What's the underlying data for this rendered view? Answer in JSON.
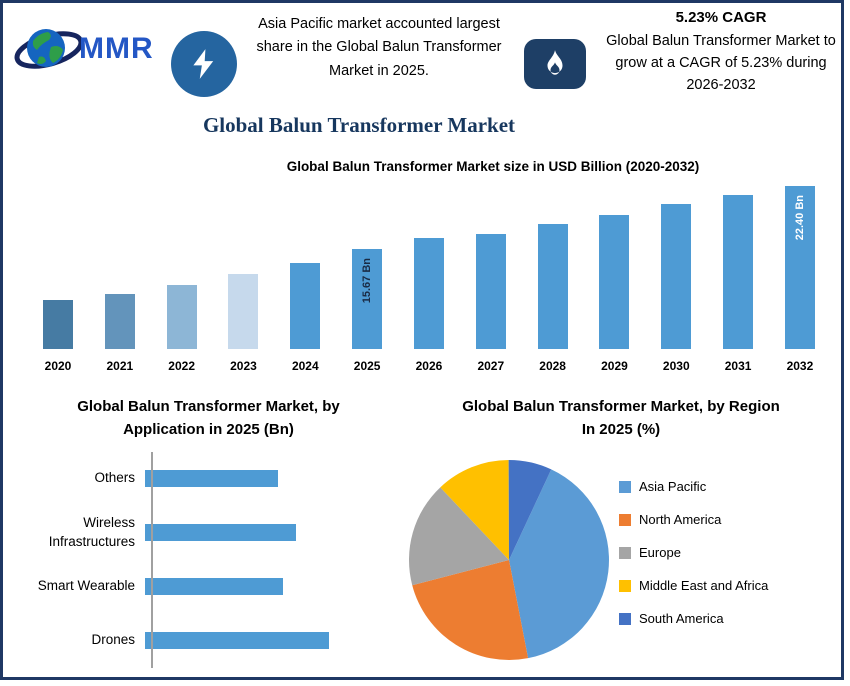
{
  "frame": {
    "border_color": "#1f3864",
    "background": "#ffffff"
  },
  "header": {
    "logo": {
      "text": "MMR",
      "icon": "globe-orbit-icon"
    },
    "highlight": "Asia Pacific market accounted largest share in the Global Balun Transformer Market in 2025.",
    "bolt_icon": "lightning-icon",
    "flame_icon": "flame-icon",
    "cagr_title": "5.23% CAGR",
    "cagr_text": "Global Balun Transformer Market to grow at a CAGR of 5.23% during 2026-2032"
  },
  "page_title": "Global Balun Transformer Market",
  "chart_data": [
    {
      "type": "bar",
      "title": "Global Balun Transformer Market size in USD Billion (2020-2032)",
      "ylabel": "USD Billion",
      "ylim": [
        5,
        22.9
      ],
      "grid": false,
      "bars": [
        {
          "year": "2020",
          "value": 10.2,
          "color": "#467ba3"
        },
        {
          "year": "2021",
          "value": 10.9,
          "color": "#6394bb"
        },
        {
          "year": "2022",
          "value": 11.8,
          "color": "#8db6d6"
        },
        {
          "year": "2023",
          "value": 13.0,
          "color": "#c6d9ec"
        },
        {
          "year": "2024",
          "value": 14.2,
          "color": "#4e9bd4"
        },
        {
          "year": "2025",
          "value": 15.67,
          "color": "#4e9bd4",
          "label": "15.67 Bn",
          "label_color": "#1a2b45"
        },
        {
          "year": "2026",
          "value": 16.8,
          "color": "#4e9bd4"
        },
        {
          "year": "2027",
          "value": 17.3,
          "color": "#4e9bd4"
        },
        {
          "year": "2028",
          "value": 18.3,
          "color": "#4e9bd4"
        },
        {
          "year": "2029",
          "value": 19.3,
          "color": "#4e9bd4"
        },
        {
          "year": "2030",
          "value": 20.4,
          "color": "#4e9bd4"
        },
        {
          "year": "2031",
          "value": 21.4,
          "color": "#4e9bd4"
        },
        {
          "year": "2032",
          "value": 22.4,
          "color": "#4e9bd4",
          "label": "22.40 Bn",
          "label_color": "#ffffff"
        }
      ]
    },
    {
      "type": "bar-horizontal",
      "title": "Global Balun Transformer Market, by Application in 2025 (Bn)",
      "categories": [
        "Others",
        "Wireless Infrastructures",
        "Smart Wearable",
        "Drones"
      ],
      "values": [
        2.9,
        3.3,
        3.0,
        4.0
      ],
      "xlim": [
        0,
        4.4
      ],
      "color": "#4e9bd4"
    },
    {
      "type": "pie",
      "title": "Global Balun Transformer Market, by Region In 2025 (%)",
      "start_angle_deg": 25,
      "legend_position": "right",
      "slices": [
        {
          "label": "Asia Pacific",
          "value": 40,
          "color": "#5b9bd5"
        },
        {
          "label": "North America",
          "value": 24,
          "color": "#ed7d31"
        },
        {
          "label": "Europe",
          "value": 17,
          "color": "#a5a5a5"
        },
        {
          "label": "Middle East and Africa",
          "value": 12,
          "color": "#ffc000"
        },
        {
          "label": "South America",
          "value": 7,
          "color": "#4472c4"
        }
      ]
    }
  ]
}
